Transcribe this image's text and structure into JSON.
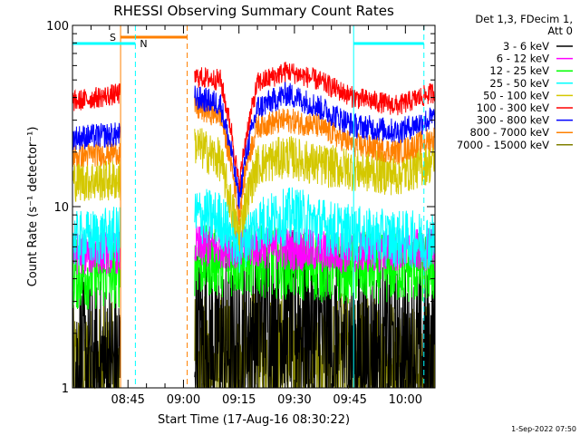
{
  "chart_data": {
    "type": "line",
    "title": "RHESSI Observing Summary Count Rates",
    "xlabel": "Start Time (17-Aug-16 08:30:22)",
    "ylabel": "Count Rate (s⁻¹ detector⁻¹)",
    "y_scale": "log",
    "ylim": [
      1,
      100
    ],
    "xlim_minutes": [
      0,
      98
    ],
    "x_ticks": [
      {
        "label": "08:45",
        "minute": 15
      },
      {
        "label": "09:00",
        "minute": 30
      },
      {
        "label": "09:15",
        "minute": 45
      },
      {
        "label": "09:30",
        "minute": 60
      },
      {
        "label": "09:45",
        "minute": 75
      },
      {
        "label": "10:00",
        "minute": 90
      }
    ],
    "y_ticks": [
      {
        "label": "1",
        "value": 1
      },
      {
        "label": "10",
        "value": 10
      },
      {
        "label": "100",
        "value": 100
      }
    ],
    "legend_header": [
      "Det 1,3, FDecim 1,",
      "Att 0"
    ],
    "legend_position": "right",
    "series": [
      {
        "name": "3 - 6 keV",
        "color": "#000000"
      },
      {
        "name": "6 - 12 keV",
        "color": "#ff00ff"
      },
      {
        "name": "12 - 25 keV",
        "color": "#00ff00"
      },
      {
        "name": "25 - 50 keV",
        "color": "#00ffff"
      },
      {
        "name": "50 - 100 keV",
        "color": "#d4c800"
      },
      {
        "name": "100 - 300 keV",
        "color": "#ff0000"
      },
      {
        "name": "300 - 800 keV",
        "color": "#0000ff"
      },
      {
        "name": "800 - 7000 keV",
        "color": "#ff8000"
      },
      {
        "name": "7000 - 15000 keV",
        "color": "#808000"
      }
    ],
    "gaps_minutes": [
      [
        13,
        33
      ]
    ],
    "annotations": [
      {
        "label": "S",
        "type": "SAA",
        "color": "#ff8000",
        "minute_range": [
          13,
          31
        ]
      },
      {
        "label": "N",
        "type": "Night",
        "color": "#00ffff",
        "minute_range": [
          0,
          17
        ]
      },
      {
        "label": "",
        "type": "Night",
        "color": "#00ffff",
        "minute_range": [
          76,
          95
        ]
      }
    ]
  },
  "footer": {
    "timestamp": "1-Sep-2022 07:50"
  }
}
